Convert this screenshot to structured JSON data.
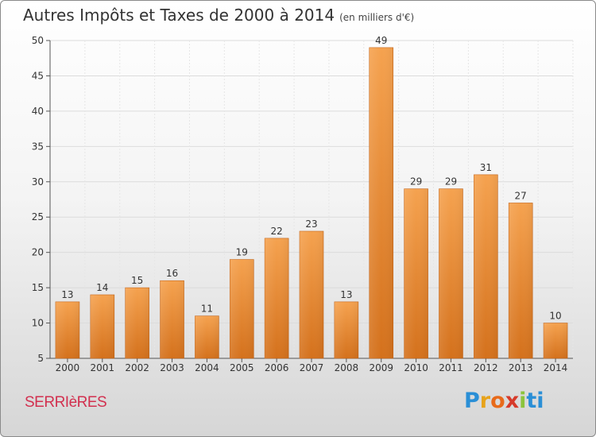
{
  "title": "Autres Impôts et Taxes de 2000 à 2014",
  "subtitle": "(en milliers d'€)",
  "place": "SERRIèRES",
  "logo": [
    "P",
    "r",
    "o",
    "x",
    "i",
    "ti"
  ],
  "colors": {
    "bar_top": "#f5a24f",
    "bar_bottom": "#d4711c",
    "town": "#d2304f"
  },
  "chart_data": {
    "type": "bar",
    "title": "Autres Impôts et Taxes de 2000 à 2014",
    "subtitle": "(en milliers d'€)",
    "categories": [
      "2000",
      "2001",
      "2002",
      "2003",
      "2004",
      "2005",
      "2006",
      "2007",
      "2008",
      "2009",
      "2010",
      "2011",
      "2012",
      "2013",
      "2014"
    ],
    "values": [
      13,
      14,
      15,
      16,
      11,
      19,
      22,
      23,
      13,
      49,
      29,
      29,
      31,
      27,
      10
    ],
    "ylim": [
      5,
      50
    ],
    "yticks": [
      5,
      10,
      15,
      20,
      25,
      30,
      35,
      40,
      45,
      50
    ],
    "grid": true,
    "xlabel": "",
    "ylabel": ""
  }
}
